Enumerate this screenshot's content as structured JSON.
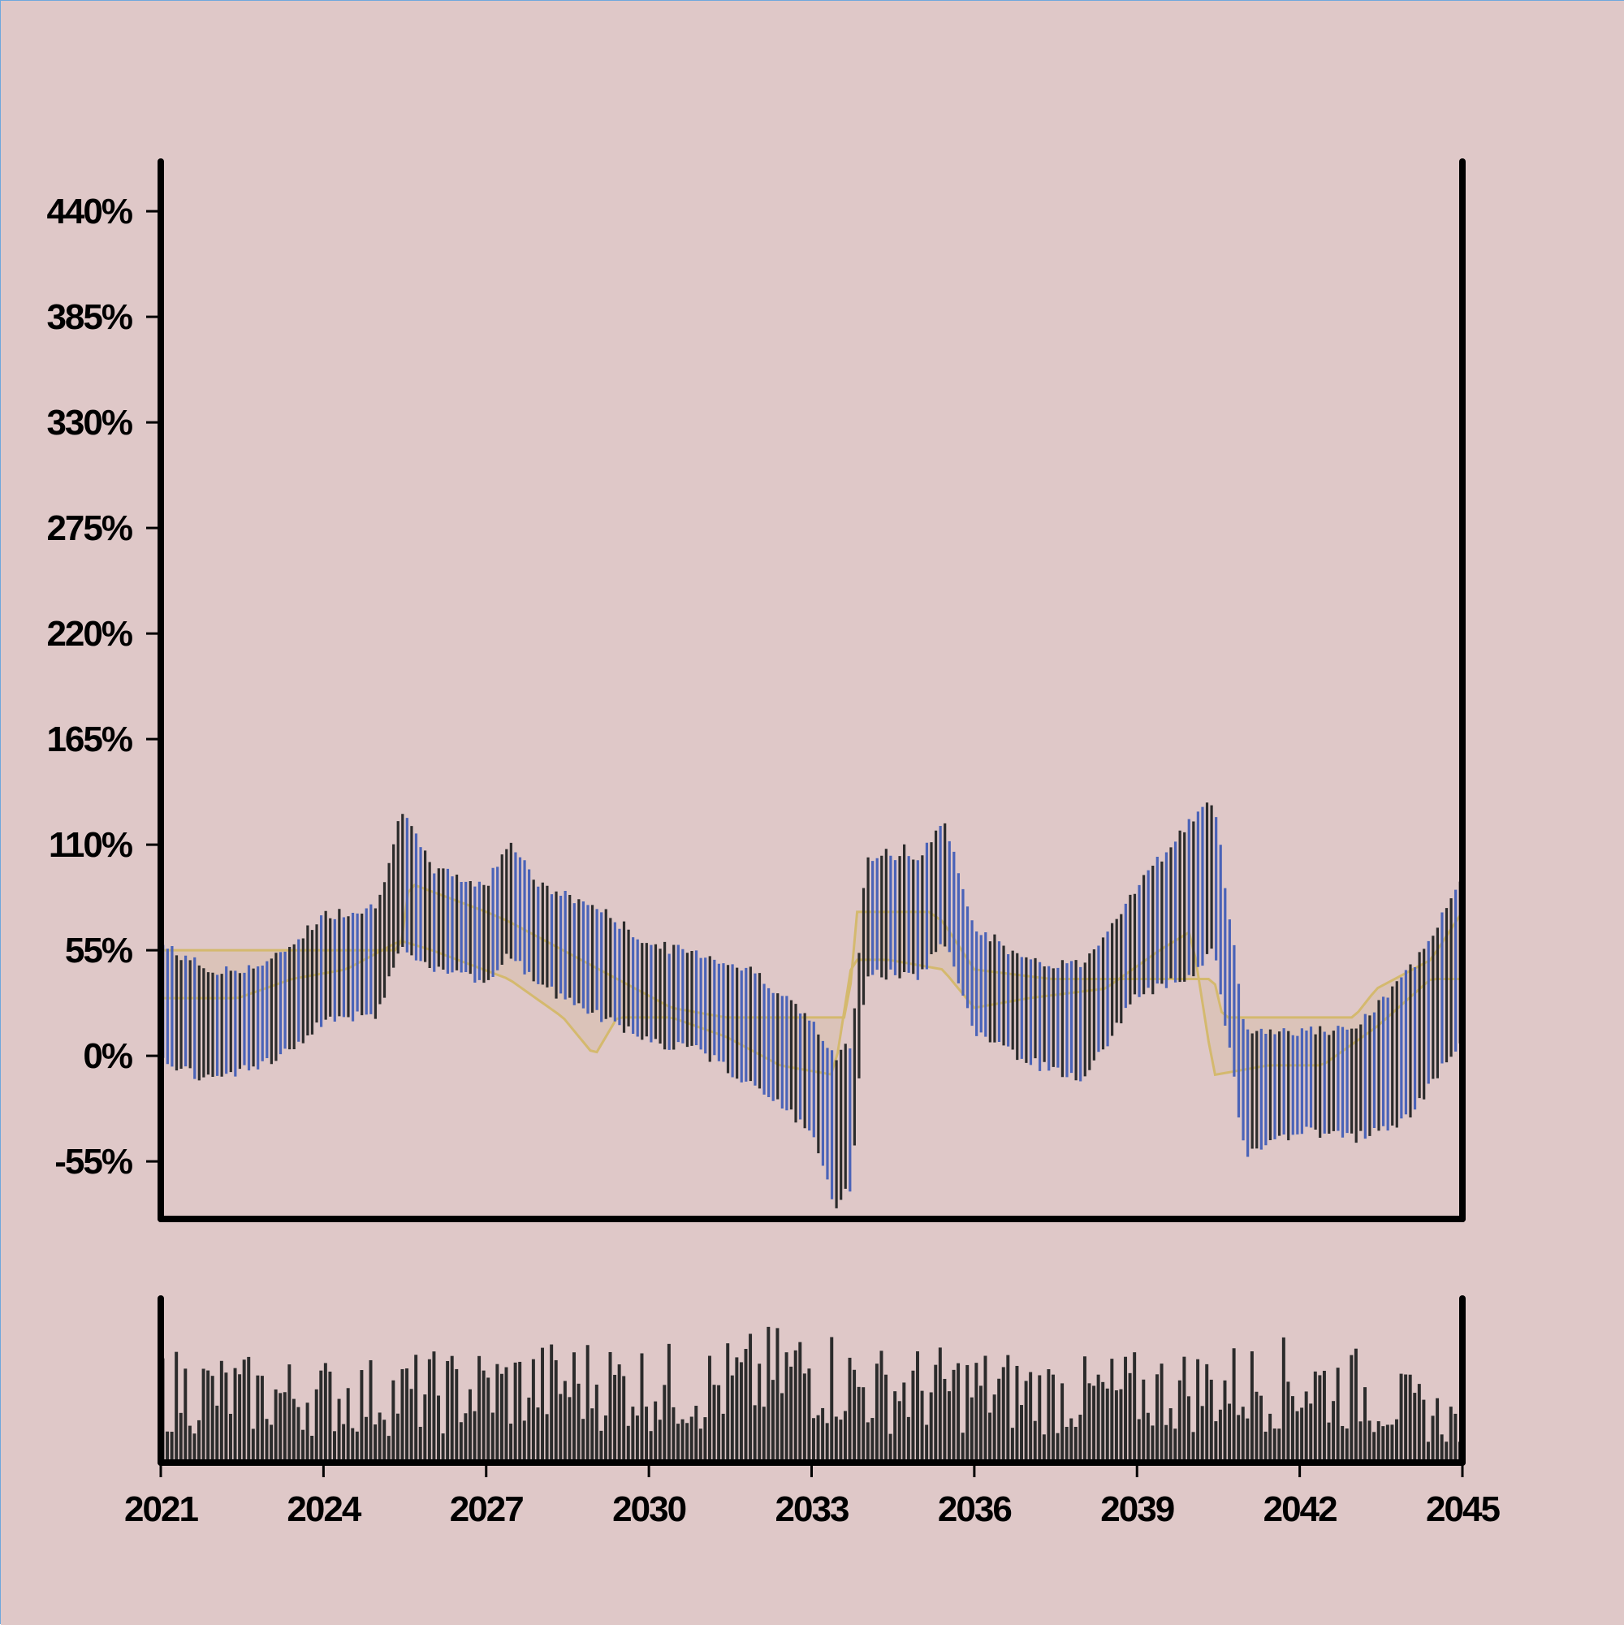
{
  "colors": {
    "background": "#dfc8c8",
    "axis": "#000000",
    "bar_up": "#2b2b2b",
    "bar_down": "#4a63b8",
    "band": "#d4b96e",
    "band_fill": "#d8bca6",
    "volume": "#2b2b2b"
  },
  "chart_data": {
    "type": "ohlc",
    "subtype": "ohlc bars with price channel band and volume panel",
    "title": "",
    "xlabel": "",
    "ylabel": "",
    "x_ticks": [
      "2021",
      "2024",
      "2027",
      "2030",
      "2033",
      "2036",
      "2039",
      "2042",
      "2045"
    ],
    "y_ticks": [
      "-55%",
      "0%",
      "55%",
      "110%",
      "165%",
      "220%",
      "275%",
      "330%",
      "385%",
      "440%"
    ],
    "xlim": [
      "2021-01",
      "2045-01"
    ],
    "ylim": [
      -85,
      465
    ],
    "volume_panel": {
      "y_axis_labels": "none"
    },
    "series": [
      {
        "name": "",
        "kind": "ohlc",
        "description": "Monthly bars, dark = rising, blue = falling; percent change values",
        "x": [
          "2021-01",
          "2022-01",
          "2023-01",
          "2024-01",
          "2025-01",
          "2025-06",
          "2026-01",
          "2027-01",
          "2027-06",
          "2028-01",
          "2029-01",
          "2030-01",
          "2031-01",
          "2032-01",
          "2033-01",
          "2033-06",
          "2033-10",
          "2034-01",
          "2035-01",
          "2035-06",
          "2036-01",
          "2037-01",
          "2038-01",
          "2039-01",
          "2040-01",
          "2040-06",
          "2041-01",
          "2042-01",
          "2043-01",
          "2044-01",
          "2044-12"
        ],
        "close": [
          25,
          15,
          20,
          40,
          45,
          100,
          70,
          65,
          95,
          65,
          50,
          30,
          30,
          15,
          -10,
          -50,
          -40,
          90,
          85,
          100,
          45,
          25,
          20,
          65,
          100,
          110,
          -15,
          -15,
          -20,
          0,
          30
        ],
        "high": [
          55,
          40,
          45,
          70,
          75,
          125,
          95,
          85,
          110,
          85,
          75,
          55,
          50,
          40,
          15,
          -5,
          5,
          100,
          100,
          120,
          65,
          45,
          45,
          85,
          120,
          130,
          10,
          10,
          10,
          40,
          85
        ],
        "low": [
          0,
          -10,
          0,
          20,
          25,
          60,
          50,
          40,
          55,
          40,
          25,
          10,
          5,
          -15,
          -35,
          -75,
          -65,
          45,
          45,
          65,
          15,
          0,
          -10,
          35,
          45,
          60,
          -50,
          -35,
          -40,
          -30,
          10
        ]
      },
      {
        "name": "",
        "kind": "channel_upper",
        "x": [
          "2021-01",
          "2024-06",
          "2025-06",
          "2025-08",
          "2027-01",
          "2027-06",
          "2028-06",
          "2029-06",
          "2030-06",
          "2031-06",
          "2032-06",
          "2033-09",
          "2033-11",
          "2035-03",
          "2035-06",
          "2036-01",
          "2037-06",
          "2039-06",
          "2040-06",
          "2040-08",
          "2043-01",
          "2043-06",
          "2044-06",
          "2045-01"
        ],
        "values": [
          55,
          55,
          55,
          90,
          75,
          70,
          55,
          40,
          25,
          20,
          20,
          20,
          75,
          75,
          70,
          45,
          40,
          40,
          40,
          20,
          20,
          35,
          50,
          75
        ]
      },
      {
        "name": "",
        "kind": "channel_lower",
        "x": [
          "2021-01",
          "2022-06",
          "2023-06",
          "2024-06",
          "2025-06",
          "2026-01",
          "2027-06",
          "2028-06",
          "2029-01",
          "2029-06",
          "2030-06",
          "2031-06",
          "2032-06",
          "2033-06",
          "2033-10",
          "2034-06",
          "2035-06",
          "2036-01",
          "2037-01",
          "2038-06",
          "2039-06",
          "2040-01",
          "2040-06",
          "2041-06",
          "2042-06",
          "2043-06",
          "2044-06"
        ],
        "values": [
          30,
          30,
          40,
          45,
          60,
          55,
          40,
          20,
          0,
          20,
          20,
          10,
          -5,
          -10,
          50,
          50,
          45,
          25,
          30,
          35,
          55,
          65,
          -10,
          -5,
          -5,
          15,
          40
        ]
      },
      {
        "name": "",
        "kind": "volume",
        "description": "Monthly volume bars (unlabelled axis, relative 0-1 scale)",
        "x": [
          "2021-01",
          "2023-01",
          "2025-01",
          "2027-01",
          "2029-01",
          "2031-01",
          "2033-01",
          "2034-01",
          "2036-01",
          "2038-01",
          "2040-01",
          "2042-01",
          "2043-01",
          "2044-12"
        ],
        "values": [
          0.55,
          0.5,
          0.5,
          0.55,
          0.6,
          0.55,
          0.7,
          0.55,
          0.55,
          0.5,
          0.55,
          0.6,
          0.55,
          0.3
        ]
      }
    ]
  }
}
